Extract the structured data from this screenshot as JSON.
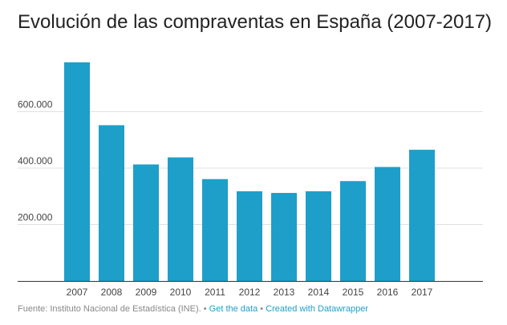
{
  "chart_data": {
    "type": "bar",
    "title": "Evolución de las compraventas en España (2007-2017)",
    "categories": [
      "2007",
      "2008",
      "2009",
      "2010",
      "2011",
      "2012",
      "2013",
      "2014",
      "2015",
      "2016",
      "2017"
    ],
    "values": [
      775000,
      552000,
      413000,
      438000,
      361000,
      318000,
      312000,
      318000,
      354000,
      404000,
      465000
    ],
    "yticks": [
      200000,
      400000,
      600000
    ],
    "ytick_labels": [
      "200.000",
      "400.000",
      "600.000"
    ],
    "ylim": [
      0,
      800000
    ],
    "xlabel": "",
    "ylabel": "",
    "grid": true,
    "bar_color": "#1d9fc9"
  },
  "footer": {
    "source": "Fuente: Instituto Nacional de Estadística (INE).",
    "separator": "•",
    "get_data": "Get the data",
    "created_with": "Created with Datawrapper"
  }
}
